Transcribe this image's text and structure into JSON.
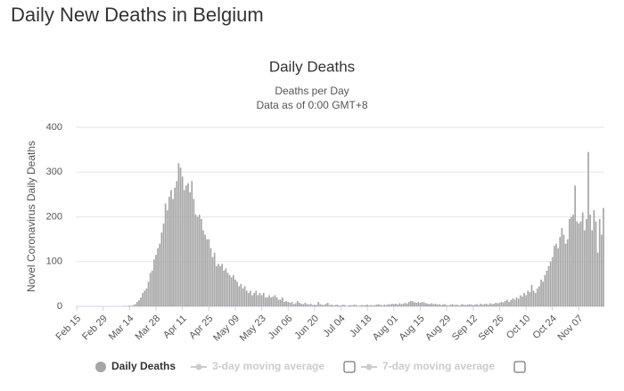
{
  "header": {
    "title": "Daily New Deaths in Belgium"
  },
  "chart_data": {
    "type": "bar",
    "title": "Daily Deaths",
    "subtitle": "Deaths per Day",
    "note": "Data as of 0:00 GMT+8",
    "y_label": "Novel Coronavirus Daily Deaths",
    "categories": [
      "Feb 15",
      null,
      null,
      null,
      null,
      null,
      null,
      null,
      null,
      null,
      null,
      null,
      null,
      null,
      "Feb 29",
      null,
      null,
      null,
      null,
      null,
      null,
      null,
      null,
      null,
      null,
      null,
      null,
      null,
      "Mar 14",
      null,
      null,
      null,
      null,
      null,
      null,
      null,
      null,
      null,
      null,
      null,
      null,
      null,
      "Mar 28",
      null,
      null,
      null,
      null,
      null,
      null,
      null,
      null,
      null,
      null,
      null,
      null,
      null,
      "Apr 11",
      null,
      null,
      null,
      null,
      null,
      null,
      null,
      null,
      null,
      null,
      null,
      null,
      null,
      "Apr 25",
      null,
      null,
      null,
      null,
      null,
      null,
      null,
      null,
      null,
      null,
      null,
      null,
      null,
      "May 09",
      null,
      null,
      null,
      null,
      null,
      null,
      null,
      null,
      null,
      null,
      null,
      null,
      null,
      "May 23",
      null,
      null,
      null,
      null,
      null,
      null,
      null,
      null,
      null,
      null,
      null,
      null,
      null,
      "Jun 06",
      null,
      null,
      null,
      null,
      null,
      null,
      null,
      null,
      null,
      null,
      null,
      null,
      null,
      "Jun 20",
      null,
      null,
      null,
      null,
      null,
      null,
      null,
      null,
      null,
      null,
      null,
      null,
      null,
      "Jul 04",
      null,
      null,
      null,
      null,
      null,
      null,
      null,
      null,
      null,
      null,
      null,
      null,
      null,
      "Jul 18",
      null,
      null,
      null,
      null,
      null,
      null,
      null,
      null,
      null,
      null,
      null,
      null,
      null,
      "Aug 01",
      null,
      null,
      null,
      null,
      null,
      null,
      null,
      null,
      null,
      null,
      null,
      null,
      null,
      "Aug 15",
      null,
      null,
      null,
      null,
      null,
      null,
      null,
      null,
      null,
      null,
      null,
      null,
      null,
      "Aug 29",
      null,
      null,
      null,
      null,
      null,
      null,
      null,
      null,
      null,
      null,
      null,
      null,
      null,
      "Sep 12",
      null,
      null,
      null,
      null,
      null,
      null,
      null,
      null,
      null,
      null,
      null,
      null,
      null,
      "Sep 26",
      null,
      null,
      null,
      null,
      null,
      null,
      null,
      null,
      null,
      null,
      null,
      null,
      null,
      "Oct 10",
      null,
      null,
      null,
      null,
      null,
      null,
      null,
      null,
      null,
      null,
      null,
      null,
      null,
      "Oct 24",
      null,
      null,
      null,
      null,
      null,
      null,
      null,
      null,
      null,
      null,
      null,
      null,
      null,
      "Nov 07",
      null,
      null,
      null,
      null,
      null,
      null,
      null,
      null,
      null,
      null,
      null,
      null,
      null
    ],
    "series": [
      {
        "name": "Daily Deaths",
        "color": "#a6a6a6",
        "values": [
          0,
          0,
          0,
          0,
          0,
          0,
          0,
          0,
          0,
          0,
          0,
          0,
          0,
          0,
          0,
          0,
          0,
          0,
          0,
          0,
          0,
          0,
          0,
          0,
          0,
          1,
          0,
          1,
          2,
          1,
          3,
          5,
          10,
          14,
          20,
          30,
          35,
          40,
          55,
          75,
          80,
          105,
          115,
          130,
          140,
          165,
          185,
          230,
          215,
          245,
          260,
          240,
          265,
          280,
          320,
          310,
          290,
          260,
          270,
          275,
          255,
          280,
          240,
          205,
          200,
          205,
          195,
          170,
          160,
          150,
          150,
          130,
          110,
          120,
          90,
          95,
          90,
          95,
          80,
          85,
          75,
          70,
          65,
          70,
          60,
          55,
          45,
          50,
          40,
          45,
          35,
          30,
          35,
          25,
          30,
          35,
          25,
          30,
          25,
          30,
          20,
          20,
          25,
          20,
          22,
          25,
          20,
          15,
          15,
          20,
          10,
          12,
          10,
          8,
          10,
          5,
          7,
          12,
          8,
          6,
          5,
          8,
          5,
          4,
          6,
          3,
          4,
          3,
          10,
          5,
          4,
          3,
          6,
          8,
          3,
          4,
          2,
          3,
          4,
          2,
          2,
          4,
          3,
          1,
          2,
          3,
          2,
          4,
          3,
          1,
          2,
          3,
          2,
          3,
          4,
          2,
          3,
          2,
          3,
          4,
          5,
          3,
          2,
          4,
          3,
          5,
          4,
          6,
          5,
          6,
          4,
          7,
          5,
          6,
          8,
          6,
          10,
          12,
          11,
          9,
          8,
          10,
          8,
          10,
          9,
          7,
          6,
          5,
          7,
          5,
          6,
          4,
          5,
          3,
          4,
          5,
          3,
          2,
          4,
          5,
          3,
          4,
          3,
          2,
          5,
          4,
          3,
          4,
          5,
          4,
          3,
          4,
          5,
          3,
          6,
          4,
          5,
          6,
          4,
          7,
          5,
          6,
          8,
          7,
          8,
          10,
          9,
          12,
          15,
          10,
          14,
          18,
          15,
          20,
          17,
          25,
          22,
          30,
          25,
          35,
          32,
          48,
          35,
          30,
          40,
          45,
          60,
          55,
          70,
          80,
          90,
          100,
          110,
          135,
          140,
          130,
          155,
          175,
          160,
          140,
          150,
          195,
          200,
          205,
          270,
          190,
          185,
          190,
          210,
          170,
          195,
          345,
          205,
          170,
          215,
          190,
          120,
          195,
          160,
          220
        ]
      }
    ],
    "hidden_series": [
      "3-day moving average",
      "7-day moving average"
    ],
    "ylim": [
      0,
      400
    ],
    "yticks": [
      0,
      100,
      200,
      300,
      400
    ],
    "grid": true
  }
}
